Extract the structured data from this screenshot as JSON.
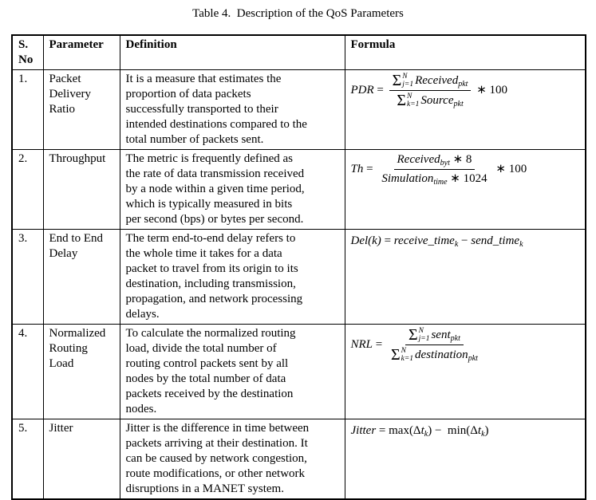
{
  "title": "Table 4.  Description of the QoS Parameters",
  "colors": {
    "text": "#000000",
    "border": "#000000",
    "background": "#ffffff"
  },
  "table": {
    "headers": {
      "sno": "S.\nNo",
      "parameter": "Parameter",
      "definition": "Definition",
      "formula": "Formula"
    },
    "rows": [
      {
        "sno": "1.",
        "parameter": "Packet\nDelivery\nRatio",
        "definition": "It is a measure that estimates the\nproportion of data packets\nsuccessfully transported to their\nintended destinations compared to the\ntotal number of packets sent.",
        "formula_text": "PDR = (Σ_{j=1}^{N} Received_pkt / Σ_{k=1}^{N} Source_pkt) ∗ 100",
        "formula": [
          {
            "t": "var",
            "v": "PDR"
          },
          {
            "t": "rel",
            "v": " = "
          },
          {
            "t": "frac",
            "num": [
              {
                "t": "sum",
                "sup": "N",
                "sub": "j=1"
              },
              {
                "t": "var",
                "v": "Received"
              },
              {
                "t": "sub",
                "v": "pkt"
              }
            ],
            "den": [
              {
                "t": "sum",
                "sup": "N",
                "sub": "k=1"
              },
              {
                "t": "var",
                "v": "Source"
              },
              {
                "t": "sub",
                "v": "pkt"
              }
            ]
          },
          {
            "t": "rel",
            "v": " ∗ 100"
          }
        ]
      },
      {
        "sno": "2.",
        "parameter": "Throughput",
        "definition": "The metric is frequently defined as\nthe rate of data transmission received\nby a node within a given time period,\nwhich is typically measured in bits\nper second (bps) or bytes per second.",
        "formula_text": "Th = (Received_byt ∗ 8 / Simulation_time ∗ 1024) ∗ 100",
        "formula": [
          {
            "t": "var",
            "v": "Th"
          },
          {
            "t": "rel",
            "v": " = "
          },
          {
            "t": "frac",
            "num": [
              {
                "t": "var",
                "v": "Received"
              },
              {
                "t": "sub",
                "v": "byt"
              },
              {
                "t": "rel",
                "v": " ∗ 8"
              }
            ],
            "den": [
              {
                "t": "var",
                "v": "Simulation"
              },
              {
                "t": "sub",
                "v": "time"
              },
              {
                "t": "rel",
                "v": " ∗ 1024"
              }
            ]
          },
          {
            "t": "rel",
            "v": " ∗ 100"
          }
        ]
      },
      {
        "sno": "3.",
        "parameter": "End to End\nDelay",
        "definition": "The term end-to-end delay refers to\nthe whole time it takes for a data\npacket to travel from its origin to its\ndestination, including transmission,\npropagation, and network processing\ndelays.",
        "formula_text": "Del(k) = receive_time_k − send_time_k",
        "formula": [
          {
            "t": "var",
            "v": "Del(k)"
          },
          {
            "t": "rel",
            "v": " = "
          },
          {
            "t": "var",
            "v": "receive_time"
          },
          {
            "t": "sub",
            "v": "k"
          },
          {
            "t": "rel",
            "v": " − "
          },
          {
            "t": "var",
            "v": "send_time"
          },
          {
            "t": "sub",
            "v": "k"
          }
        ]
      },
      {
        "sno": "4.",
        "parameter": "Normalized\nRouting\nLoad",
        "definition": "To calculate the normalized routing\nload, divide the total number of\nrouting control packets sent by all\nnodes by the total number of data\npackets received by the destination\nnodes.",
        "formula_text": "NRL = Σ_{j=1}^{N} sent_pkt / Σ_{k=1}^{N} destination_pkt",
        "formula": [
          {
            "t": "var",
            "v": "NRL"
          },
          {
            "t": "rel",
            "v": " = "
          },
          {
            "t": "frac",
            "num": [
              {
                "t": "sum",
                "sup": "N",
                "sub": "j=1"
              },
              {
                "t": "var",
                "v": "sent"
              },
              {
                "t": "sub",
                "v": "pkt"
              }
            ],
            "den": [
              {
                "t": "sum",
                "sup": "N",
                "sub": "k=1"
              },
              {
                "t": "var",
                "v": "destination"
              },
              {
                "t": "sub",
                "v": "pkt"
              }
            ]
          }
        ]
      },
      {
        "sno": "5.",
        "parameter": "Jitter",
        "definition": "Jitter is the difference in time between\npackets arriving at their destination. It\ncan be caused by network congestion,\nroute modifications, or other network\ndisruptions in a MANET system.",
        "formula_text": "Jitter = max(Δt_k) − min(Δt_k)",
        "formula": [
          {
            "t": "var",
            "v": "Jitter"
          },
          {
            "t": "rel",
            "v": " = max(Δ"
          },
          {
            "t": "var",
            "v": "t"
          },
          {
            "t": "sub",
            "v": "k"
          },
          {
            "t": "rel",
            "v": ") −  min(Δ"
          },
          {
            "t": "var",
            "v": "t"
          },
          {
            "t": "sub",
            "v": "k"
          },
          {
            "t": "rel",
            "v": ")"
          }
        ]
      }
    ]
  }
}
